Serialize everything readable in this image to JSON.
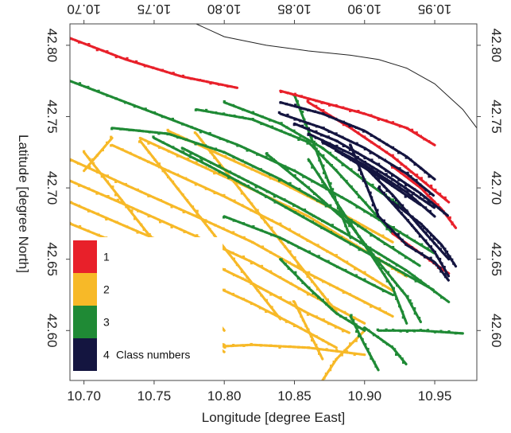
{
  "chart_data": {
    "type": "scatter",
    "title": "",
    "xlabel": "Longitude [degree East]",
    "ylabel": "Latitude [degree North]",
    "xlim": [
      10.69,
      10.98
    ],
    "ylim": [
      42.565,
      42.815
    ],
    "x_ticks": [
      "10.70",
      "10.75",
      "10.80",
      "10.85",
      "10.90",
      "10.95"
    ],
    "y_ticks": [
      "42.60",
      "42.65",
      "42.70",
      "42.75",
      "42.80"
    ],
    "grid": false,
    "legend_placement": "bottom-left",
    "legend_title": "Class numbers",
    "series": [
      {
        "name": "1",
        "color": "#e8202a",
        "segments": [
          [
            [
              10.69,
              42.805
            ],
            [
              10.73,
              42.79
            ],
            [
              10.77,
              42.778
            ],
            [
              10.81,
              42.77
            ]
          ],
          [
            [
              10.84,
              42.768
            ],
            [
              10.87,
              42.76
            ],
            [
              10.9,
              42.752
            ],
            [
              10.93,
              42.742
            ],
            [
              10.95,
              42.73
            ]
          ],
          [
            [
              10.86,
              42.76
            ],
            [
              10.89,
              42.742
            ],
            [
              10.92,
              42.722
            ],
            [
              10.94,
              42.706
            ],
            [
              10.96,
              42.69
            ]
          ],
          [
            [
              10.92,
              42.715
            ],
            [
              10.94,
              42.7
            ],
            [
              10.955,
              42.685
            ],
            [
              10.965,
              42.672
            ]
          ],
          [
            [
              10.92,
              42.668
            ],
            [
              10.94,
              42.654
            ],
            [
              10.96,
              42.64
            ]
          ]
        ]
      },
      {
        "name": "2",
        "color": "#f7b928",
        "segments": [
          [
            [
              10.69,
              42.72
            ],
            [
              10.73,
              42.702
            ],
            [
              10.78,
              42.68
            ],
            [
              10.82,
              42.662
            ],
            [
              10.86,
              42.64
            ],
            [
              10.89,
              42.625
            ],
            [
              10.92,
              42.61
            ]
          ],
          [
            [
              10.69,
              42.705
            ],
            [
              10.73,
              42.688
            ],
            [
              10.78,
              42.666
            ],
            [
              10.82,
              42.648
            ],
            [
              10.86,
              42.626
            ],
            [
              10.9,
              42.605
            ]
          ],
          [
            [
              10.69,
              42.69
            ],
            [
              10.73,
              42.673
            ],
            [
              10.78,
              42.652
            ],
            [
              10.82,
              42.633
            ],
            [
              10.86,
              42.612
            ],
            [
              10.89,
              42.598
            ]
          ],
          [
            [
              10.69,
              42.675
            ],
            [
              10.73,
              42.659
            ],
            [
              10.78,
              42.637
            ],
            [
              10.82,
              42.619
            ],
            [
              10.85,
              42.604
            ],
            [
              10.88,
              42.588
            ]
          ],
          [
            [
              10.72,
              42.73
            ],
            [
              10.76,
              42.712
            ],
            [
              10.8,
              42.694
            ],
            [
              10.84,
              42.674
            ],
            [
              10.88,
              42.652
            ],
            [
              10.92,
              42.628
            ]
          ],
          [
            [
              10.74,
              42.735
            ],
            [
              10.78,
              42.717
            ],
            [
              10.82,
              42.699
            ],
            [
              10.86,
              42.68
            ],
            [
              10.9,
              42.656
            ],
            [
              10.93,
              42.638
            ]
          ],
          [
            [
              10.76,
              42.74
            ],
            [
              10.8,
              42.722
            ],
            [
              10.84,
              42.704
            ],
            [
              10.88,
              42.684
            ],
            [
              10.92,
              42.662
            ]
          ],
          [
            [
              10.7,
              42.725
            ],
            [
              10.72,
              42.7
            ],
            [
              10.74,
              42.675
            ],
            [
              10.76,
              42.65
            ],
            [
              10.78,
              42.625
            ],
            [
              10.8,
              42.6
            ]
          ],
          [
            [
              10.74,
              42.733
            ],
            [
              10.76,
              42.708
            ],
            [
              10.78,
              42.683
            ],
            [
              10.8,
              42.658
            ],
            [
              10.82,
              42.633
            ],
            [
              10.84,
              42.608
            ]
          ],
          [
            [
              10.78,
              42.738
            ],
            [
              10.8,
              42.713
            ],
            [
              10.82,
              42.688
            ],
            [
              10.84,
              42.663
            ],
            [
              10.86,
              42.638
            ],
            [
              10.88,
              42.613
            ]
          ],
          [
            [
              10.72,
              42.735
            ],
            [
              10.7,
              42.712
            ]
          ],
          [
            [
              10.74,
              42.64
            ],
            [
              10.76,
              42.62
            ],
            [
              10.78,
              42.6
            ],
            [
              10.8,
              42.585
            ]
          ],
          [
            [
              10.72,
              42.64
            ],
            [
              10.73,
              42.615
            ],
            [
              10.75,
              42.59
            ]
          ],
          [
            [
              10.74,
              42.59
            ],
            [
              10.78,
              42.588
            ],
            [
              10.82,
              42.59
            ],
            [
              10.86,
              42.588
            ],
            [
              10.9,
              42.583
            ]
          ],
          [
            [
              10.72,
              42.61
            ],
            [
              10.77,
              42.6
            ],
            [
              10.8,
              42.59
            ]
          ],
          [
            [
              10.85,
              42.62
            ],
            [
              10.86,
              42.6
            ],
            [
              10.87,
              42.58
            ]
          ],
          [
            [
              10.9,
              42.6
            ],
            [
              10.88,
              42.58
            ],
            [
              10.87,
              42.565
            ]
          ]
        ]
      },
      {
        "name": "3",
        "color": "#1f8a35",
        "segments": [
          [
            [
              10.69,
              42.775
            ],
            [
              10.73,
              42.76
            ],
            [
              10.77,
              42.745
            ],
            [
              10.81,
              42.73
            ],
            [
              10.85,
              42.712
            ],
            [
              10.89,
              42.69
            ],
            [
              10.92,
              42.672
            ],
            [
              10.95,
              42.654
            ]
          ],
          [
            [
              10.72,
              42.742
            ],
            [
              10.76,
              42.738
            ],
            [
              10.8,
              42.725
            ],
            [
              10.84,
              42.706
            ],
            [
              10.88,
              42.684
            ],
            [
              10.91,
              42.664
            ],
            [
              10.94,
              42.645
            ]
          ],
          [
            [
              10.78,
              42.755
            ],
            [
              10.82,
              42.748
            ],
            [
              10.86,
              42.732
            ],
            [
              10.88,
              42.712
            ],
            [
              10.9,
              42.69
            ],
            [
              10.92,
              42.668
            ]
          ],
          [
            [
              10.8,
              42.76
            ],
            [
              10.84,
              42.745
            ],
            [
              10.87,
              42.728
            ],
            [
              10.9,
              42.705
            ],
            [
              10.93,
              42.684
            ]
          ],
          [
            [
              10.75,
              42.735
            ],
            [
              10.79,
              42.715
            ],
            [
              10.83,
              42.694
            ],
            [
              10.87,
              42.672
            ],
            [
              10.91,
              42.65
            ],
            [
              10.95,
              42.628
            ]
          ],
          [
            [
              10.77,
              42.728
            ],
            [
              10.81,
              42.708
            ],
            [
              10.85,
              42.688
            ],
            [
              10.89,
              42.666
            ],
            [
              10.93,
              42.642
            ],
            [
              10.96,
              42.62
            ]
          ],
          [
            [
              10.83,
              42.724
            ],
            [
              10.86,
              42.7
            ],
            [
              10.89,
              42.674
            ],
            [
              10.91,
              42.648
            ],
            [
              10.93,
              42.624
            ],
            [
              10.94,
              42.606
            ]
          ],
          [
            [
              10.86,
              42.72
            ],
            [
              10.88,
              42.69
            ],
            [
              10.9,
              42.66
            ],
            [
              10.92,
              42.63
            ],
            [
              10.93,
              42.605
            ]
          ],
          [
            [
              10.85,
              42.765
            ],
            [
              10.86,
              42.74
            ],
            [
              10.87,
              42.715
            ],
            [
              10.88,
              42.69
            ],
            [
              10.89,
              42.665
            ]
          ],
          [
            [
              10.91,
              42.6
            ],
            [
              10.94,
              42.6
            ],
            [
              10.97,
              42.598
            ]
          ],
          [
            [
              10.9,
              42.602
            ],
            [
              10.92,
              42.588
            ],
            [
              10.93,
              42.576
            ]
          ],
          [
            [
              10.89,
              42.61
            ],
            [
              10.9,
              42.59
            ],
            [
              10.91,
              42.572
            ]
          ],
          [
            [
              10.84,
              42.65
            ],
            [
              10.86,
              42.63
            ],
            [
              10.88,
              42.612
            ],
            [
              10.9,
              42.6
            ]
          ],
          [
            [
              10.8,
              42.68
            ],
            [
              10.84,
              42.665
            ],
            [
              10.88,
              42.645
            ],
            [
              10.92,
              42.625
            ]
          ]
        ]
      },
      {
        "name": "4",
        "color": "#141540",
        "segments": [
          [
            [
              10.84,
              42.76
            ],
            [
              10.87,
              42.752
            ],
            [
              10.9,
              42.74
            ],
            [
              10.93,
              42.722
            ],
            [
              10.95,
              42.706
            ]
          ],
          [
            [
              10.84,
              42.752
            ],
            [
              10.87,
              42.742
            ],
            [
              10.9,
              42.728
            ],
            [
              10.93,
              42.71
            ],
            [
              10.95,
              42.694
            ]
          ],
          [
            [
              10.85,
              42.745
            ],
            [
              10.88,
              42.733
            ],
            [
              10.91,
              42.716
            ],
            [
              10.94,
              42.696
            ],
            [
              10.96,
              42.68
            ]
          ],
          [
            [
              10.86,
              42.738
            ],
            [
              10.89,
              42.724
            ],
            [
              10.92,
              42.706
            ],
            [
              10.95,
              42.686
            ]
          ],
          [
            [
              10.87,
              42.732
            ],
            [
              10.9,
              42.716
            ],
            [
              10.93,
              42.697
            ],
            [
              10.95,
              42.68
            ]
          ],
          [
            [
              10.88,
              42.726
            ],
            [
              10.91,
              42.708
            ],
            [
              10.94,
              42.688
            ]
          ],
          [
            [
              10.9,
              42.715
            ],
            [
              10.92,
              42.695
            ],
            [
              10.94,
              42.672
            ],
            [
              10.96,
              42.65
            ]
          ],
          [
            [
              10.91,
              42.7
            ],
            [
              10.93,
              42.678
            ],
            [
              10.95,
              42.655
            ],
            [
              10.96,
              42.638
            ]
          ],
          [
            [
              10.89,
              42.73
            ],
            [
              10.9,
              42.705
            ],
            [
              10.91,
              42.68
            ],
            [
              10.93,
              42.66
            ]
          ],
          [
            [
              10.92,
              42.69
            ],
            [
              10.94,
              42.675
            ],
            [
              10.955,
              42.66
            ],
            [
              10.965,
              42.645
            ]
          ],
          [
            [
              10.93,
              42.66
            ],
            [
              10.95,
              42.648
            ],
            [
              10.96,
              42.635
            ]
          ]
        ]
      }
    ],
    "coastline": [
      [
        10.78,
        42.815
      ],
      [
        10.8,
        42.806
      ],
      [
        10.83,
        42.8
      ],
      [
        10.86,
        42.796
      ],
      [
        10.89,
        42.793
      ],
      [
        10.91,
        42.79
      ],
      [
        10.93,
        42.784
      ],
      [
        10.95,
        42.773
      ],
      [
        10.97,
        42.755
      ],
      [
        10.98,
        42.742
      ]
    ]
  }
}
